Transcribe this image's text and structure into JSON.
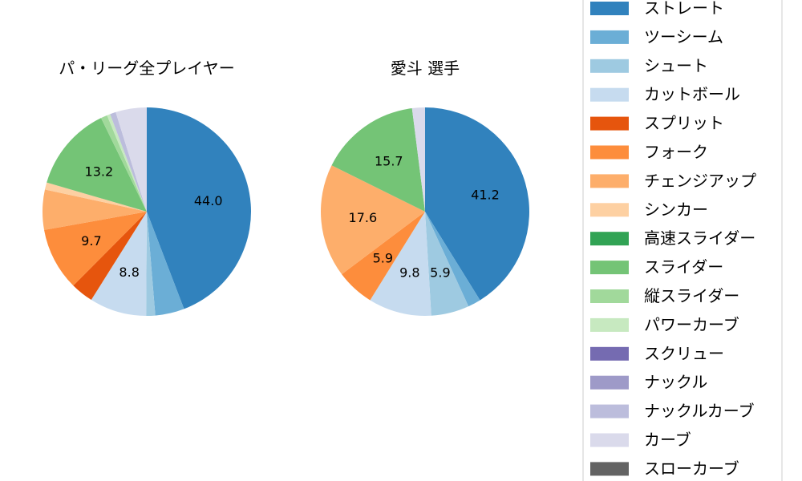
{
  "chart_data": [
    {
      "type": "pie",
      "title": "パ・リーグ全プレイヤー",
      "values": [
        44.0,
        4.5,
        1.4,
        8.8,
        3.5,
        9.7,
        6.2,
        1.1,
        0,
        13.2,
        1.0,
        0.5,
        0,
        0,
        0.9,
        4.8,
        0
      ],
      "labels": [
        "44.0",
        null,
        null,
        "8.8",
        null,
        "9.7",
        null,
        null,
        null,
        "13.2",
        null,
        null,
        null,
        null,
        null,
        null,
        null
      ]
    },
    {
      "type": "pie",
      "title": "愛斗  選手",
      "values": [
        41.2,
        2.0,
        5.9,
        9.8,
        0,
        5.9,
        17.6,
        0,
        0,
        15.7,
        0,
        0,
        0,
        0,
        0,
        2.0,
        0
      ],
      "labels": [
        "41.2",
        null,
        "5.9",
        "9.8",
        null,
        "5.9",
        "17.6",
        null,
        null,
        "15.7",
        null,
        null,
        null,
        null,
        null,
        null,
        null
      ]
    }
  ],
  "legend": {
    "placement": "right",
    "entries": [
      "ストレート",
      "ツーシーム",
      "シュート",
      "カットボール",
      "スプリット",
      "フォーク",
      "チェンジアップ",
      "シンカー",
      "高速スライダー",
      "スライダー",
      "縦スライダー",
      "パワーカーブ",
      "スクリュー",
      "ナックル",
      "ナックルカーブ",
      "カーブ",
      "スローカーブ"
    ]
  },
  "colors": [
    "#3182bd",
    "#6baed6",
    "#9ecae1",
    "#c6dbef",
    "#e6550d",
    "#fd8d3c",
    "#fdae6b",
    "#fdd0a2",
    "#31a354",
    "#74c476",
    "#a1d99b",
    "#c7e9c0",
    "#756bb1",
    "#9e9ac8",
    "#bcbddc",
    "#dadaeb",
    "#636363"
  ]
}
